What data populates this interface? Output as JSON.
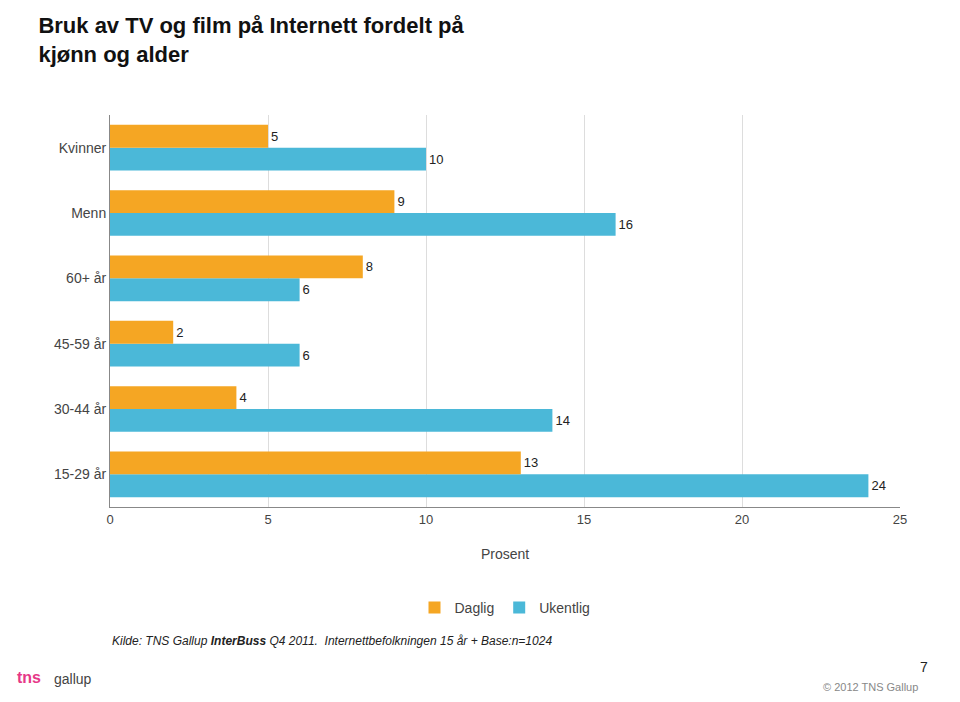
{
  "chart_data": {
    "type": "bar",
    "orientation": "horizontal",
    "title": "Bruk av TV og film på Internett fordelt på\nkjønn og alder",
    "categories": [
      "15-29 år",
      "30-44 år",
      "45-59 år",
      "60+ år",
      "Menn",
      "Kvinner"
    ],
    "series": [
      {
        "name": "Daglig",
        "color": "#F5A623",
        "values": [
          13,
          4,
          2,
          8,
          9,
          5
        ]
      },
      {
        "name": "Ukentlig",
        "color": "#4BB8D8",
        "values": [
          24,
          14,
          6,
          6,
          16,
          10
        ]
      }
    ],
    "xlabel": "Prosent",
    "xlim": [
      0,
      25
    ],
    "xticks": [
      0,
      5,
      10,
      15,
      20,
      25
    ],
    "grid": true,
    "legend": "bottom",
    "data_labels": true,
    "annotations": [
      "Kilde: TNS Gallup ",
      "InterBuss",
      " Q4 2011.  Internettbefolkningen 15 år + Base:n=1024",
      "7",
      "© 2012 TNS Gallup",
      "tns",
      "gallup"
    ]
  }
}
